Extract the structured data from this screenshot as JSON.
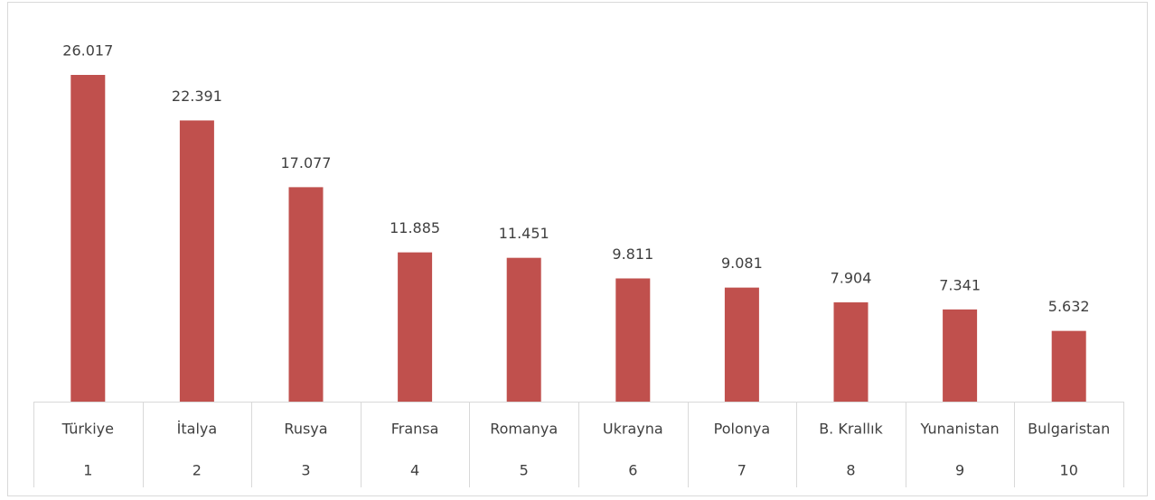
{
  "chart_data": {
    "type": "bar",
    "categories": [
      "Türkiye",
      "İtalya",
      "Rusya",
      "Fransa",
      "Romanya",
      "Ukrayna",
      "Polonya",
      "B. Krallık",
      "Yunanistan",
      "Bulgaristan"
    ],
    "ranks": [
      1,
      2,
      3,
      4,
      5,
      6,
      7,
      8,
      9,
      10
    ],
    "values": [
      26017,
      22391,
      17077,
      11885,
      11451,
      9811,
      9081,
      7904,
      7341,
      5632
    ],
    "value_labels": [
      "26.017",
      "22.391",
      "17.077",
      "11.885",
      "11.451",
      "9.811",
      "9.081",
      "7.904",
      "7.341",
      "5.632"
    ],
    "color": "#c0504d"
  }
}
